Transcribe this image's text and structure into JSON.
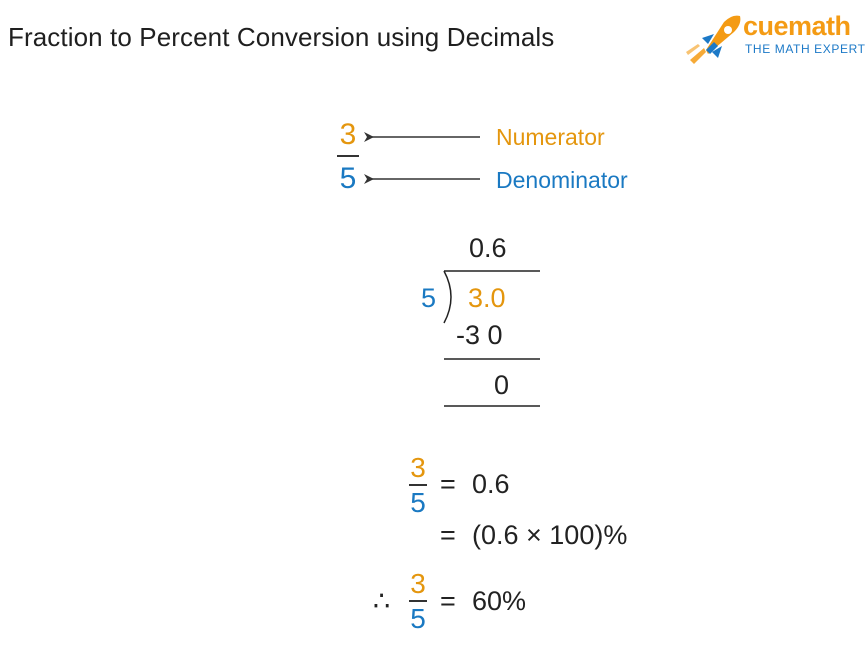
{
  "header": {
    "title": "Fraction to Percent Conversion using Decimals",
    "brand": "cuemath",
    "tagline": "THE MATH EXPERT"
  },
  "fraction_labels": {
    "numerator": "3",
    "denominator": "5",
    "numerator_label": "Numerator",
    "denominator_label": "Denominator"
  },
  "long_division": {
    "quotient": "0.6",
    "divisor": "5",
    "dividend": "3.0",
    "subtract": "-3 0",
    "remainder": "0"
  },
  "result": {
    "line1_numerator": "3",
    "line1_denominator": "5",
    "line1_rhs": "0.6",
    "line2_rhs": "(0.6 × 100)%",
    "therefore_symbol": "∴",
    "line3_numerator": "3",
    "line3_denominator": "5",
    "line3_rhs": "60%",
    "equals": "="
  },
  "colors": {
    "numerator": "#e4960e",
    "denominator": "#1a79c2",
    "brand_orange": "#f49b14",
    "brand_blue": "#1c79c7"
  }
}
